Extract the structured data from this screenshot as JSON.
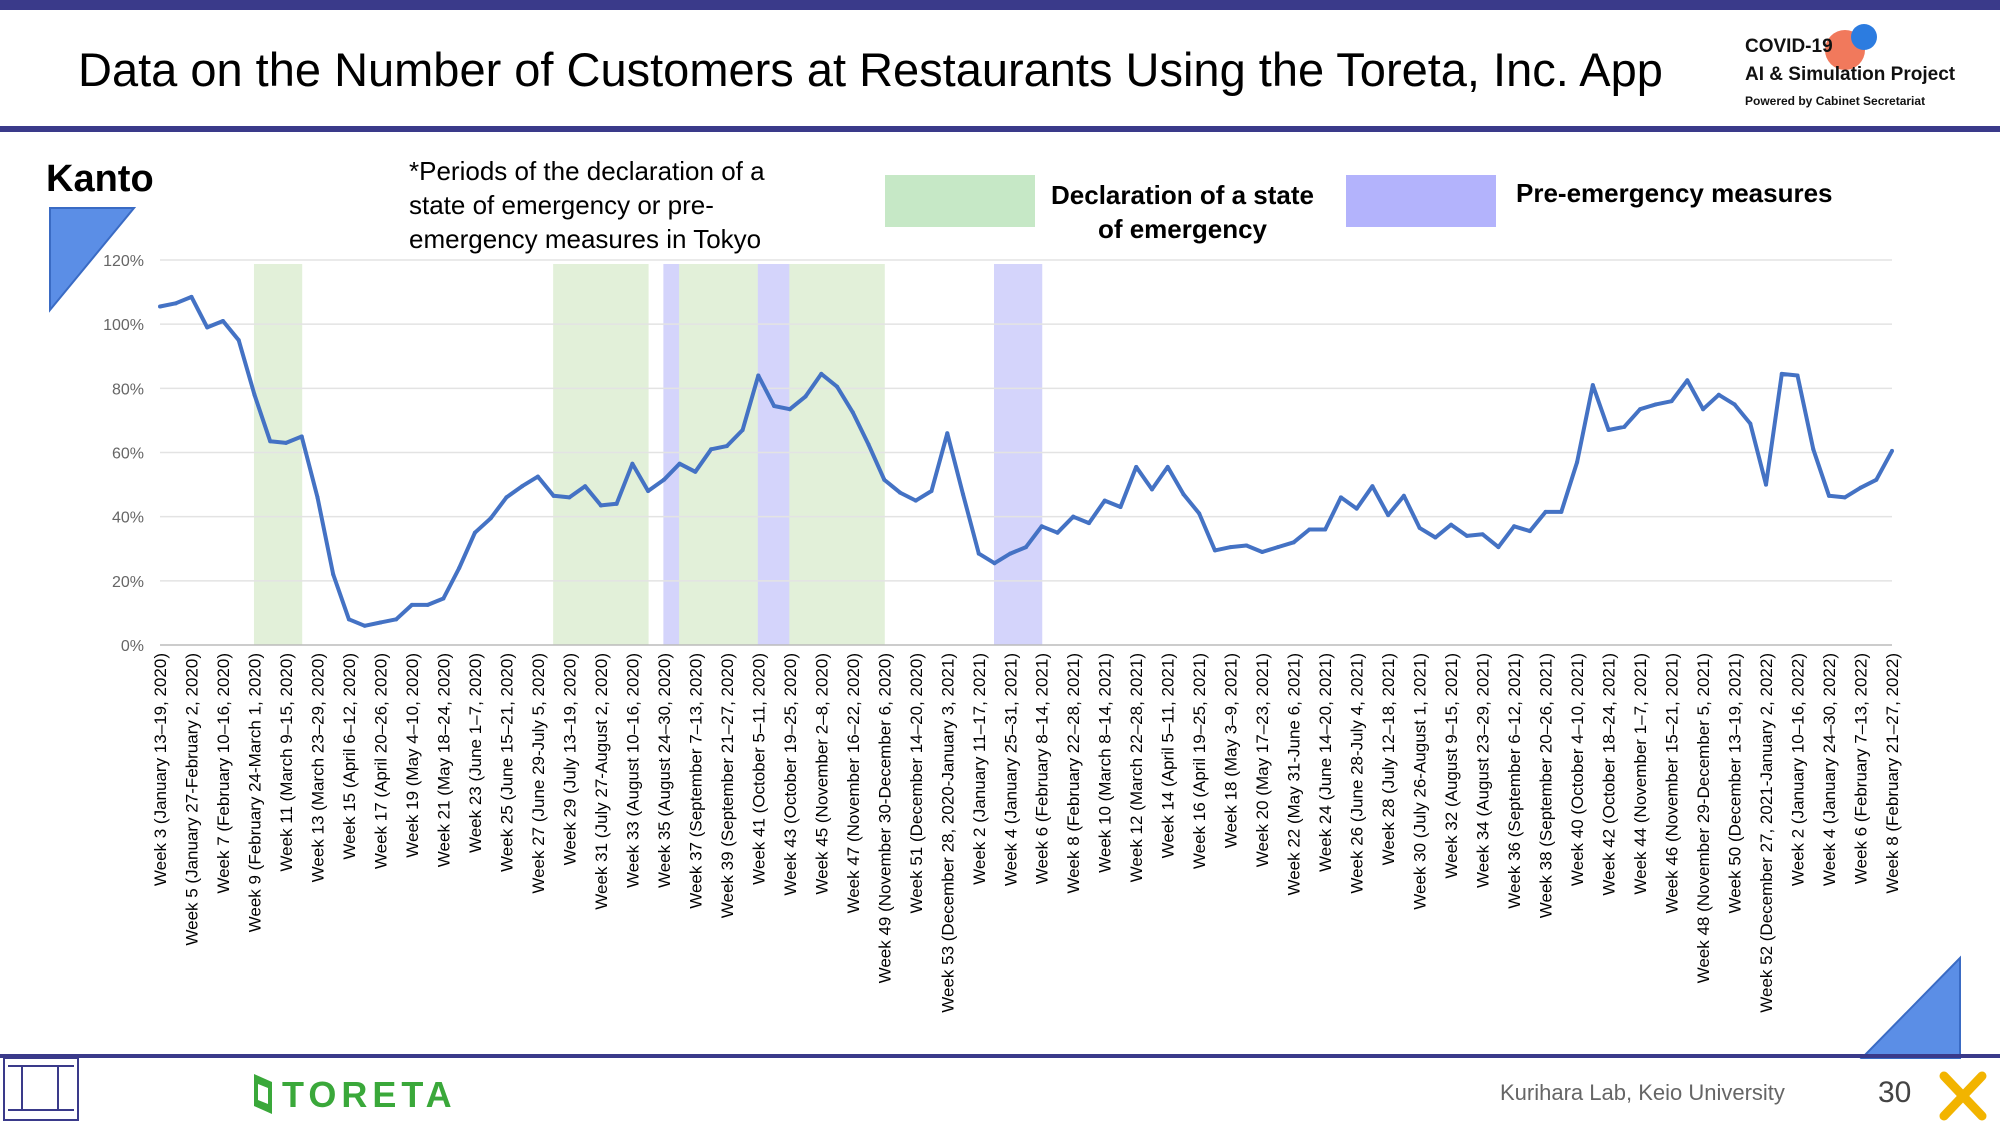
{
  "title": "Data on the Number of Customers at Restaurants Using the Toreta, Inc. App",
  "logo": {
    "line1": "COVID-19",
    "line2": "AI & Simulation Project",
    "line3": "Powered by Cabinet Secretariat"
  },
  "region": "Kanto",
  "note": "*Periods of the declaration of a state of emergency or pre-emergency measures in Tokyo",
  "legend": [
    {
      "label": "Declaration of a state of emergency",
      "color": "#c6e8c6"
    },
    {
      "label": "Pre-emergency measures",
      "color": "#b3b3fc"
    }
  ],
  "colors": {
    "line": "#4472c4",
    "emergency_band": "#e2f0d9",
    "pre_emergency_band": "#d4d4fb",
    "accent": "#3a3a8a",
    "toreta_green": "#3aa83a"
  },
  "footer": {
    "brand": "TORETA",
    "lab": "Kurihara Lab, Keio University",
    "page": "30"
  },
  "chart_data": {
    "type": "line",
    "ylim": [
      0,
      120
    ],
    "yticks": [
      "0%",
      "20%",
      "40%",
      "60%",
      "80%",
      "100%",
      "120%"
    ],
    "grid": true,
    "x_labels": [
      "Week 3 (January 13–19, 2020)",
      "Week 5 (January 27-February 2, 2020)",
      "Week 7 (February 10–16, 2020)",
      "Week 9 (February 24-March 1, 2020)",
      "Week 11 (March 9–15, 2020)",
      "Week 13 (March 23–29, 2020)",
      "Week 15 (April 6–12, 2020)",
      "Week 17 (April 20–26, 2020)",
      "Week 19 (May 4–10, 2020)",
      "Week 21 (May 18–24, 2020)",
      "Week 23 (June 1–7, 2020)",
      "Week 25 (June 15–21, 2020)",
      "Week 27 (June 29-July 5, 2020)",
      "Week 29 (July 13–19, 2020)",
      "Week 31 (July 27-August 2, 2020)",
      "Week 33 (August 10–16, 2020)",
      "Week 35 (August 24–30, 2020)",
      "Week 37 (September 7–13, 2020)",
      "Week 39 (September 21–27, 2020)",
      "Week 41 (October 5–11, 2020)",
      "Week 43 (October 19–25, 2020)",
      "Week 45 (November 2–8, 2020)",
      "Week 47 (November 16–22, 2020)",
      "Week 49 (November 30-December 6, 2020)",
      "Week 51 (December 14–20, 2020)",
      "Week 53 (December 28, 2020-January 3, 2021)",
      "Week 2 (January 11–17, 2021)",
      "Week 4 (January 25–31, 2021)",
      "Week 6 (February 8–14, 2021)",
      "Week 8 (February 22–28, 2021)",
      "Week 10 (March 8–14, 2021)",
      "Week 12 (March 22–28, 2021)",
      "Week 14 (April 5–11, 2021)",
      "Week 16 (April 19–25, 2021)",
      "Week 18 (May 3–9, 2021)",
      "Week 20 (May 17–23, 2021)",
      "Week 22 (May 31-June 6, 2021)",
      "Week 24 (June 14–20, 2021)",
      "Week 26 (June 28-July 4, 2021)",
      "Week 28 (July 12–18, 2021)",
      "Week 30 (July 26-August 1, 2021)",
      "Week 32 (August 9–15, 2021)",
      "Week 34 (August 23–29, 2021)",
      "Week 36 (September 6–12, 2021)",
      "Week 38 (September 20–26, 2021)",
      "Week 40 (October 4–10, 2021)",
      "Week 42 (October 18–24, 2021)",
      "Week 44 (November 1–7, 2021)",
      "Week 46 (November 15–21, 2021)",
      "Week 48 (November 29-December 5, 2021)",
      "Week 50 (December 13–19, 2021)",
      "Week 52 (December 27, 2021-January 2, 2022)",
      "Week 2 (January 10–16, 2022)",
      "Week 4 (January 24–30, 2022)",
      "Week 6 (February 7–13, 2022)",
      "Week 8 (February 21–27, 2022)"
    ],
    "values": [
      105.5,
      106.5,
      108.5,
      99,
      101,
      95,
      78,
      63.5,
      63,
      65,
      46,
      22,
      8,
      6,
      7,
      8,
      12.5,
      12.5,
      14.5,
      24,
      35,
      39.5,
      46,
      49.5,
      52.5,
      46.5,
      46,
      49.5,
      43.5,
      44,
      56.5,
      48,
      51.5,
      56.5,
      54,
      61,
      62,
      67,
      84,
      74.5,
      73.5,
      77.5,
      84.5,
      80.5,
      72.5,
      62.5,
      51.5,
      47.5,
      45,
      48,
      66,
      47,
      28.5,
      25.5,
      28.5,
      30.5,
      37,
      35,
      40,
      38,
      45,
      43,
      55.5,
      48.5,
      55.5,
      47,
      41,
      29.5,
      30.5,
      31,
      29,
      30.5,
      32,
      36,
      36,
      46,
      42.5,
      49.5,
      40.5,
      46.5,
      36.5,
      33.5,
      37.5,
      34,
      34.5,
      30.5,
      37,
      35.5,
      41.5,
      41.5,
      57,
      81,
      67,
      68,
      73.5,
      75,
      76,
      82.5,
      73.5,
      78,
      75,
      69,
      50,
      84.5,
      84,
      61,
      46.5,
      46,
      49,
      51.5,
      60.5
    ],
    "bands": [
      {
        "type": "emergency",
        "from_index": 6,
        "to_index": 9
      },
      {
        "type": "emergency",
        "from_index": 25,
        "to_index": 31
      },
      {
        "type": "pre-emergency",
        "from_index": 32,
        "to_index": 33
      },
      {
        "type": "emergency",
        "from_index": 33,
        "to_index": 38
      },
      {
        "type": "pre-emergency",
        "from_index": 38,
        "to_index": 40
      },
      {
        "type": "emergency",
        "from_index": 40,
        "to_index": 46
      },
      {
        "type": "pre-emergency",
        "from_index": 53,
        "to_index": 56
      }
    ]
  }
}
